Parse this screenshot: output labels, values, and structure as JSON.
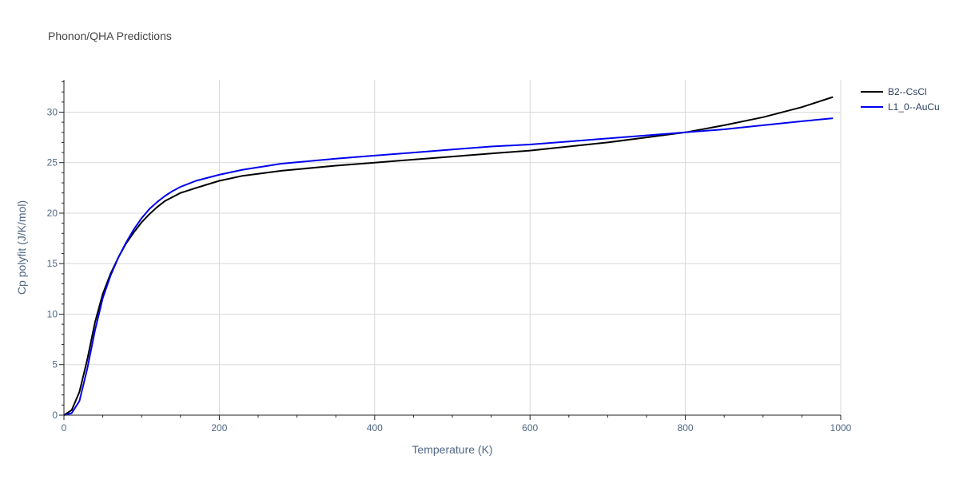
{
  "chart_data": {
    "type": "line",
    "title": "Phonon/QHA Predictions",
    "xlabel": "Temperature (K)",
    "ylabel": "Cp polyfit (J/K/mol)",
    "xlim": [
      0,
      1000
    ],
    "ylim": [
      0,
      33.2
    ],
    "x_ticks": [
      0,
      200,
      400,
      600,
      800,
      1000
    ],
    "y_ticks": [
      0,
      5,
      10,
      15,
      20,
      25,
      30
    ],
    "grid": true,
    "legend_position": "top-right",
    "series": [
      {
        "name": "B2--CsCl",
        "color": "#000000",
        "x": [
          0,
          10,
          20,
          30,
          40,
          50,
          60,
          70,
          80,
          90,
          100,
          110,
          120,
          130,
          140,
          150,
          170,
          200,
          230,
          280,
          350,
          400,
          450,
          500,
          550,
          600,
          650,
          700,
          750,
          800,
          850,
          900,
          950,
          990
        ],
        "y": [
          0,
          0.5,
          2.3,
          5.5,
          9.2,
          12.0,
          14.0,
          15.6,
          17.0,
          18.1,
          19.1,
          19.9,
          20.6,
          21.2,
          21.6,
          22.0,
          22.5,
          23.2,
          23.7,
          24.2,
          24.7,
          25.0,
          25.3,
          25.6,
          25.9,
          26.2,
          26.6,
          27.0,
          27.5,
          28.0,
          28.7,
          29.5,
          30.5,
          31.5
        ]
      },
      {
        "name": "L1_0--AuCu",
        "color": "#0000ee",
        "x": [
          0,
          10,
          20,
          30,
          40,
          50,
          60,
          70,
          80,
          90,
          100,
          110,
          120,
          130,
          140,
          150,
          170,
          200,
          230,
          280,
          350,
          400,
          450,
          500,
          550,
          600,
          650,
          700,
          750,
          800,
          850,
          900,
          950,
          990
        ],
        "y": [
          0,
          0.2,
          1.4,
          4.6,
          8.4,
          11.6,
          13.8,
          15.6,
          17.1,
          18.4,
          19.5,
          20.4,
          21.1,
          21.7,
          22.2,
          22.6,
          23.2,
          23.8,
          24.3,
          24.9,
          25.4,
          25.7,
          26.0,
          26.3,
          26.6,
          26.8,
          27.1,
          27.4,
          27.7,
          28.0,
          28.3,
          28.7,
          29.1,
          29.4
        ]
      }
    ]
  }
}
